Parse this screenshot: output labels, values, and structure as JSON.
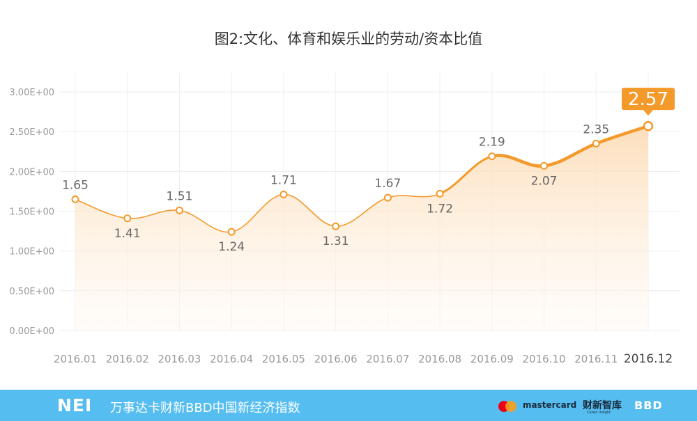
{
  "chart_data": {
    "type": "line",
    "title": "图2:文化、体育和娱乐业的劳动/资本比值",
    "categories": [
      "2016.01",
      "2016.02",
      "2016.03",
      "2016.04",
      "2016.05",
      "2016.06",
      "2016.07",
      "2016.08",
      "2016.09",
      "2016.10",
      "2016.11",
      "2016.12"
    ],
    "values": [
      1.65,
      1.41,
      1.51,
      1.24,
      1.71,
      1.31,
      1.67,
      1.72,
      2.19,
      2.07,
      2.35,
      2.57
    ],
    "data_labels": [
      "1.65",
      "1.41",
      "1.51",
      "1.24",
      "1.71",
      "1.31",
      "1.67",
      "1.72",
      "2.19",
      "2.07",
      "2.35",
      "2.57"
    ],
    "yticks": [
      "0.00E+00",
      "0.50E+00",
      "1.00E+00",
      "1.50E+00",
      "2.00E+00",
      "2.50E+00",
      "3.00E+00"
    ],
    "ylim": [
      0,
      3
    ],
    "grid": true,
    "xlabel": "",
    "ylabel": "",
    "highlight_last": true,
    "colors": {
      "line": "#f39a2b",
      "fill": "#fde7cf",
      "callout": "#f39a2b"
    }
  },
  "footer": {
    "brand": "NEI",
    "text": "万事达卡财新BBD中国新经济指数",
    "mastercard_label": "mastercard",
    "caixin_logo": "财新智库",
    "caixin_sub": "Caixin Insight",
    "bbd_logo": "BBD",
    "background": "#56bdf1"
  }
}
